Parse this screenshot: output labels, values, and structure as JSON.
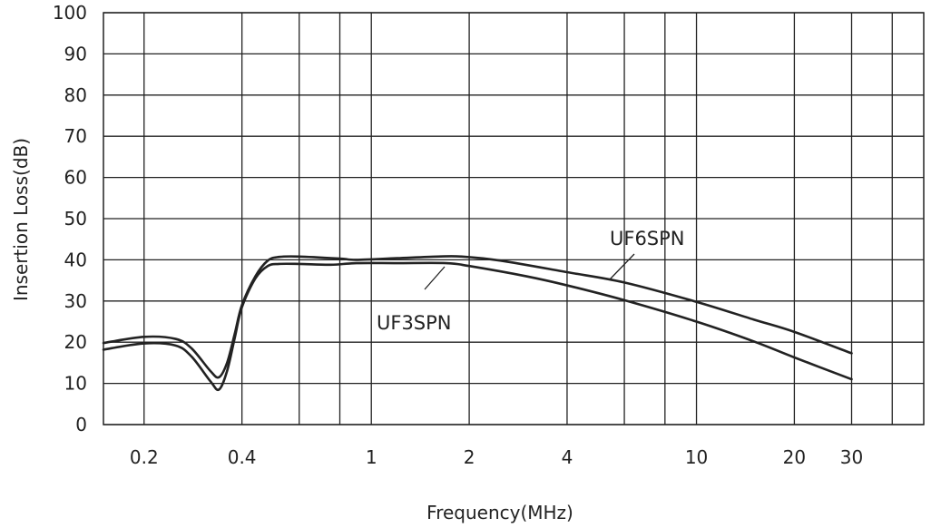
{
  "chart_data": {
    "type": "line",
    "xscale": "log",
    "xlim": [
      0.15,
      50
    ],
    "ylim": [
      0,
      100
    ],
    "xlabel": "Frequency(MHz)",
    "ylabel": "Insertion Loss(dB)",
    "xticks": [
      {
        "value": 0.2,
        "label": "0.2"
      },
      {
        "value": 0.4,
        "label": "0.4"
      },
      {
        "value": 1,
        "label": "1"
      },
      {
        "value": 2,
        "label": "2"
      },
      {
        "value": 4,
        "label": "4"
      },
      {
        "value": 10,
        "label": "10"
      },
      {
        "value": 20,
        "label": "20"
      },
      {
        "value": 30,
        "label": "30"
      }
    ],
    "xgrid": [
      0.2,
      0.4,
      0.6,
      0.8,
      1,
      2,
      4,
      6,
      8,
      10,
      20,
      30,
      40
    ],
    "yticks": [
      0,
      10,
      20,
      30,
      40,
      50,
      60,
      70,
      80,
      90,
      100
    ],
    "grid": true,
    "series": [
      {
        "name": "UF6SPN",
        "points": [
          [
            0.15,
            19.8
          ],
          [
            0.2,
            21.3
          ],
          [
            0.25,
            20.8
          ],
          [
            0.28,
            18.5
          ],
          [
            0.32,
            13
          ],
          [
            0.34,
            11.5
          ],
          [
            0.36,
            15
          ],
          [
            0.38,
            22
          ],
          [
            0.4,
            29
          ],
          [
            0.44,
            36
          ],
          [
            0.48,
            39.8
          ],
          [
            0.52,
            40.7
          ],
          [
            0.6,
            40.8
          ],
          [
            0.8,
            40.3
          ],
          [
            0.9,
            40
          ],
          [
            1.2,
            40.4
          ],
          [
            1.6,
            40.8
          ],
          [
            1.9,
            40.8
          ],
          [
            2.5,
            39.8
          ],
          [
            4,
            37
          ],
          [
            6,
            34.5
          ],
          [
            10,
            29.8
          ],
          [
            15,
            25.5
          ],
          [
            20,
            22.5
          ],
          [
            30,
            17.3
          ]
        ]
      },
      {
        "name": "UF3SPN",
        "points": [
          [
            0.15,
            18.2
          ],
          [
            0.2,
            19.7
          ],
          [
            0.25,
            19.2
          ],
          [
            0.28,
            16.5
          ],
          [
            0.32,
            10.5
          ],
          [
            0.34,
            8.5
          ],
          [
            0.36,
            13
          ],
          [
            0.38,
            21
          ],
          [
            0.4,
            28.5
          ],
          [
            0.44,
            35.5
          ],
          [
            0.48,
            38.5
          ],
          [
            0.52,
            39
          ],
          [
            0.6,
            39
          ],
          [
            0.75,
            38.8
          ],
          [
            0.9,
            39.2
          ],
          [
            1.2,
            39.2
          ],
          [
            1.7,
            39.2
          ],
          [
            2,
            38.5
          ],
          [
            3,
            36
          ],
          [
            4,
            33.8
          ],
          [
            6,
            30.2
          ],
          [
            10,
            25
          ],
          [
            15,
            20.2
          ],
          [
            20,
            16.3
          ],
          [
            30,
            11
          ]
        ]
      }
    ],
    "annotations": [
      {
        "text": "UF6SPN",
        "series": "UF6SPN"
      },
      {
        "text": "UF3SPN",
        "series": "UF3SPN"
      }
    ],
    "colors": {
      "line": "#222222",
      "grid": "#222222",
      "background": "#ffffff"
    }
  }
}
